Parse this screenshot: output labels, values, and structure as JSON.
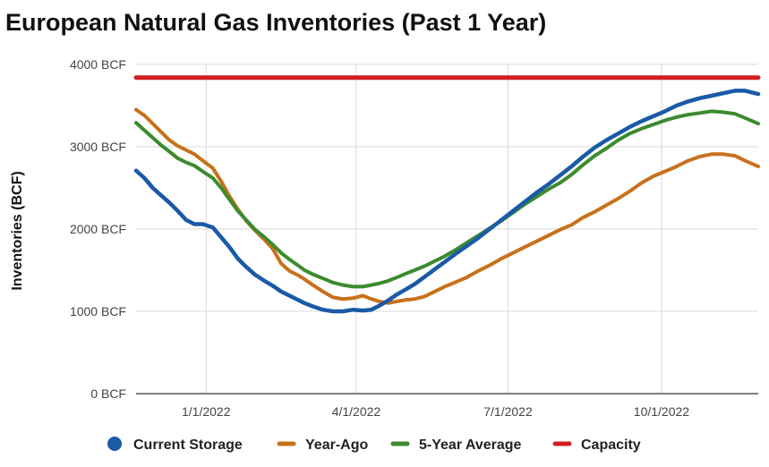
{
  "chart_data": {
    "type": "line",
    "title": "European Natural Gas Inventories (Past 1 Year)",
    "ylabel": "Inventories (BCF)",
    "xlabel": "",
    "ylim": [
      0,
      4000
    ],
    "y_ticks": [
      {
        "value": 0,
        "label": "0 BCF"
      },
      {
        "value": 1000,
        "label": "1000 BCF"
      },
      {
        "value": 2000,
        "label": "2000 BCF"
      },
      {
        "value": 3000,
        "label": "3000 BCF"
      },
      {
        "value": 4000,
        "label": "4000 BCF"
      }
    ],
    "xlim": [
      "2021-11-20",
      "2022-11-28"
    ],
    "x_ticks": [
      {
        "value": "2022-01-01",
        "label": "1/1/2022"
      },
      {
        "value": "2022-04-01",
        "label": "4/1/2022"
      },
      {
        "value": "2022-07-01",
        "label": "7/1/2022"
      },
      {
        "value": "2022-10-01",
        "label": "10/1/2022"
      }
    ],
    "grid": true,
    "legend_position": "bottom",
    "series": [
      {
        "name": "Current Storage",
        "color": "#1a5aa6",
        "legend_marker": "circle",
        "points": [
          [
            "2021-11-20",
            2710
          ],
          [
            "2021-11-25",
            2620
          ],
          [
            "2021-11-30",
            2500
          ],
          [
            "2021-12-05",
            2410
          ],
          [
            "2021-12-10",
            2320
          ],
          [
            "2021-12-15",
            2220
          ],
          [
            "2021-12-20",
            2110
          ],
          [
            "2021-12-25",
            2060
          ],
          [
            "2021-12-30",
            2060
          ],
          [
            "2022-01-05",
            2020
          ],
          [
            "2022-01-10",
            1900
          ],
          [
            "2022-01-15",
            1780
          ],
          [
            "2022-01-20",
            1640
          ],
          [
            "2022-01-25",
            1540
          ],
          [
            "2022-01-30",
            1450
          ],
          [
            "2022-02-05",
            1370
          ],
          [
            "2022-02-10",
            1310
          ],
          [
            "2022-02-15",
            1240
          ],
          [
            "2022-02-20",
            1190
          ],
          [
            "2022-02-25",
            1140
          ],
          [
            "2022-03-01",
            1100
          ],
          [
            "2022-03-06",
            1060
          ],
          [
            "2022-03-12",
            1020
          ],
          [
            "2022-03-18",
            1000
          ],
          [
            "2022-03-24",
            1000
          ],
          [
            "2022-03-30",
            1020
          ],
          [
            "2022-04-05",
            1010
          ],
          [
            "2022-04-10",
            1020
          ],
          [
            "2022-04-15",
            1070
          ],
          [
            "2022-04-20",
            1130
          ],
          [
            "2022-04-25",
            1200
          ],
          [
            "2022-05-01",
            1270
          ],
          [
            "2022-05-06",
            1330
          ],
          [
            "2022-05-12",
            1420
          ],
          [
            "2022-05-18",
            1510
          ],
          [
            "2022-05-24",
            1600
          ],
          [
            "2022-05-30",
            1690
          ],
          [
            "2022-06-06",
            1790
          ],
          [
            "2022-06-13",
            1890
          ],
          [
            "2022-06-20",
            2000
          ],
          [
            "2022-06-27",
            2110
          ],
          [
            "2022-07-04",
            2220
          ],
          [
            "2022-07-11",
            2330
          ],
          [
            "2022-07-18",
            2440
          ],
          [
            "2022-07-25",
            2540
          ],
          [
            "2022-08-01",
            2650
          ],
          [
            "2022-08-08",
            2760
          ],
          [
            "2022-08-15",
            2880
          ],
          [
            "2022-08-22",
            2990
          ],
          [
            "2022-08-29",
            3080
          ],
          [
            "2022-09-05",
            3160
          ],
          [
            "2022-09-12",
            3240
          ],
          [
            "2022-09-19",
            3310
          ],
          [
            "2022-09-26",
            3370
          ],
          [
            "2022-10-03",
            3430
          ],
          [
            "2022-10-10",
            3500
          ],
          [
            "2022-10-17",
            3550
          ],
          [
            "2022-10-24",
            3590
          ],
          [
            "2022-10-31",
            3620
          ],
          [
            "2022-11-07",
            3650
          ],
          [
            "2022-11-14",
            3680
          ],
          [
            "2022-11-20",
            3680
          ],
          [
            "2022-11-28",
            3640
          ]
        ]
      },
      {
        "name": "Year-Ago",
        "color": "#c7711b",
        "legend_marker": "line",
        "points": [
          [
            "2021-11-20",
            3450
          ],
          [
            "2021-11-25",
            3380
          ],
          [
            "2021-11-30",
            3280
          ],
          [
            "2021-12-05",
            3180
          ],
          [
            "2021-12-10",
            3080
          ],
          [
            "2021-12-15",
            3010
          ],
          [
            "2021-12-20",
            2960
          ],
          [
            "2021-12-25",
            2910
          ],
          [
            "2021-12-30",
            2830
          ],
          [
            "2022-01-05",
            2740
          ],
          [
            "2022-01-10",
            2580
          ],
          [
            "2022-01-15",
            2400
          ],
          [
            "2022-01-20",
            2240
          ],
          [
            "2022-01-25",
            2100
          ],
          [
            "2022-01-30",
            1990
          ],
          [
            "2022-02-05",
            1870
          ],
          [
            "2022-02-10",
            1760
          ],
          [
            "2022-02-15",
            1580
          ],
          [
            "2022-02-20",
            1490
          ],
          [
            "2022-02-25",
            1440
          ],
          [
            "2022-03-01",
            1390
          ],
          [
            "2022-03-06",
            1320
          ],
          [
            "2022-03-12",
            1240
          ],
          [
            "2022-03-18",
            1170
          ],
          [
            "2022-03-24",
            1150
          ],
          [
            "2022-03-30",
            1160
          ],
          [
            "2022-04-05",
            1190
          ],
          [
            "2022-04-10",
            1150
          ],
          [
            "2022-04-15",
            1120
          ],
          [
            "2022-04-20",
            1100
          ],
          [
            "2022-04-25",
            1120
          ],
          [
            "2022-05-01",
            1140
          ],
          [
            "2022-05-06",
            1150
          ],
          [
            "2022-05-12",
            1180
          ],
          [
            "2022-05-18",
            1240
          ],
          [
            "2022-05-24",
            1300
          ],
          [
            "2022-05-30",
            1350
          ],
          [
            "2022-06-06",
            1410
          ],
          [
            "2022-06-13",
            1490
          ],
          [
            "2022-06-20",
            1560
          ],
          [
            "2022-06-27",
            1640
          ],
          [
            "2022-07-04",
            1710
          ],
          [
            "2022-07-11",
            1780
          ],
          [
            "2022-07-18",
            1850
          ],
          [
            "2022-07-25",
            1920
          ],
          [
            "2022-08-01",
            1990
          ],
          [
            "2022-08-08",
            2050
          ],
          [
            "2022-08-15",
            2140
          ],
          [
            "2022-08-22",
            2210
          ],
          [
            "2022-08-29",
            2290
          ],
          [
            "2022-09-05",
            2370
          ],
          [
            "2022-09-12",
            2460
          ],
          [
            "2022-09-19",
            2560
          ],
          [
            "2022-09-26",
            2640
          ],
          [
            "2022-10-03",
            2700
          ],
          [
            "2022-10-10",
            2760
          ],
          [
            "2022-10-17",
            2830
          ],
          [
            "2022-10-24",
            2880
          ],
          [
            "2022-10-31",
            2910
          ],
          [
            "2022-11-07",
            2910
          ],
          [
            "2022-11-14",
            2890
          ],
          [
            "2022-11-20",
            2830
          ],
          [
            "2022-11-28",
            2760
          ]
        ]
      },
      {
        "name": "5-Year Average",
        "color": "#3c8a2e",
        "legend_marker": "line",
        "points": [
          [
            "2021-11-20",
            3290
          ],
          [
            "2021-11-25",
            3200
          ],
          [
            "2021-11-30",
            3110
          ],
          [
            "2021-12-05",
            3020
          ],
          [
            "2021-12-10",
            2940
          ],
          [
            "2021-12-15",
            2860
          ],
          [
            "2021-12-20",
            2810
          ],
          [
            "2021-12-25",
            2770
          ],
          [
            "2021-12-30",
            2700
          ],
          [
            "2022-01-05",
            2620
          ],
          [
            "2022-01-10",
            2500
          ],
          [
            "2022-01-15",
            2360
          ],
          [
            "2022-01-20",
            2220
          ],
          [
            "2022-01-25",
            2110
          ],
          [
            "2022-01-30",
            2000
          ],
          [
            "2022-02-05",
            1900
          ],
          [
            "2022-02-10",
            1810
          ],
          [
            "2022-02-15",
            1710
          ],
          [
            "2022-02-20",
            1630
          ],
          [
            "2022-02-25",
            1560
          ],
          [
            "2022-03-01",
            1500
          ],
          [
            "2022-03-06",
            1450
          ],
          [
            "2022-03-12",
            1400
          ],
          [
            "2022-03-18",
            1350
          ],
          [
            "2022-03-24",
            1320
          ],
          [
            "2022-03-30",
            1300
          ],
          [
            "2022-04-05",
            1300
          ],
          [
            "2022-04-10",
            1320
          ],
          [
            "2022-04-15",
            1340
          ],
          [
            "2022-04-20",
            1370
          ],
          [
            "2022-04-25",
            1410
          ],
          [
            "2022-05-01",
            1460
          ],
          [
            "2022-05-06",
            1500
          ],
          [
            "2022-05-12",
            1550
          ],
          [
            "2022-05-18",
            1610
          ],
          [
            "2022-05-24",
            1670
          ],
          [
            "2022-05-30",
            1740
          ],
          [
            "2022-06-06",
            1830
          ],
          [
            "2022-06-13",
            1920
          ],
          [
            "2022-06-20",
            2010
          ],
          [
            "2022-06-27",
            2100
          ],
          [
            "2022-07-04",
            2200
          ],
          [
            "2022-07-11",
            2300
          ],
          [
            "2022-07-18",
            2390
          ],
          [
            "2022-07-25",
            2480
          ],
          [
            "2022-08-01",
            2560
          ],
          [
            "2022-08-08",
            2660
          ],
          [
            "2022-08-15",
            2780
          ],
          [
            "2022-08-22",
            2890
          ],
          [
            "2022-08-29",
            2980
          ],
          [
            "2022-09-05",
            3080
          ],
          [
            "2022-09-12",
            3160
          ],
          [
            "2022-09-19",
            3220
          ],
          [
            "2022-09-26",
            3270
          ],
          [
            "2022-10-03",
            3320
          ],
          [
            "2022-10-10",
            3360
          ],
          [
            "2022-10-17",
            3390
          ],
          [
            "2022-10-24",
            3410
          ],
          [
            "2022-10-31",
            3430
          ],
          [
            "2022-11-07",
            3420
          ],
          [
            "2022-11-14",
            3400
          ],
          [
            "2022-11-20",
            3350
          ],
          [
            "2022-11-28",
            3280
          ]
        ]
      },
      {
        "name": "Capacity",
        "color": "#d01f1f",
        "legend_marker": "line",
        "points": [
          [
            "2021-11-20",
            3840
          ],
          [
            "2022-11-28",
            3840
          ]
        ]
      }
    ]
  }
}
